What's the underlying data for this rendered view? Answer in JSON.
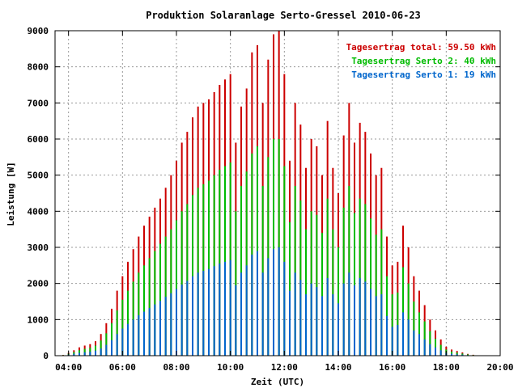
{
  "chart_data": {
    "type": "bar",
    "title": "Produktion Solaranlage Serto-Gressel 2010-06-23",
    "xlabel": "Zeit (UTC)",
    "ylabel": "Leistung [W]",
    "x_range_hours": [
      3.5,
      20
    ],
    "ylim": [
      0,
      9000
    ],
    "x_ticks": [
      {
        "hour": 4,
        "label": "04:00"
      },
      {
        "hour": 6,
        "label": "06:00"
      },
      {
        "hour": 8,
        "label": "08:00"
      },
      {
        "hour": 10,
        "label": "10:00"
      },
      {
        "hour": 12,
        "label": "12:00"
      },
      {
        "hour": 14,
        "label": "14:00"
      },
      {
        "hour": 16,
        "label": "16:00"
      },
      {
        "hour": 18,
        "label": "18:00"
      },
      {
        "hour": 20,
        "label": "20:00"
      }
    ],
    "y_ticks": [
      0,
      1000,
      2000,
      3000,
      4000,
      5000,
      6000,
      7000,
      8000,
      9000
    ],
    "grid": true,
    "legend_position": "top-right",
    "legend": [
      {
        "label": "Tagesertrag total: 59.50 kWh",
        "color": "#cc0000"
      },
      {
        "label": "Tagesertrag Serto 2: 40 kWh",
        "color": "#00bb00"
      },
      {
        "label": "Tagesertrag Serto 1: 19 kWh",
        "color": "#0066cc"
      }
    ],
    "series": [
      {
        "name": "total",
        "color": "#cc0000",
        "points": [
          [
            3.8,
            20
          ],
          [
            4.0,
            80
          ],
          [
            4.2,
            150
          ],
          [
            4.4,
            230
          ],
          [
            4.6,
            280
          ],
          [
            4.8,
            320
          ],
          [
            5.0,
            400
          ],
          [
            5.2,
            600
          ],
          [
            5.4,
            900
          ],
          [
            5.6,
            1300
          ],
          [
            5.8,
            1800
          ],
          [
            6.0,
            2200
          ],
          [
            6.2,
            2600
          ],
          [
            6.4,
            2950
          ],
          [
            6.6,
            3300
          ],
          [
            6.8,
            3600
          ],
          [
            7.0,
            3850
          ],
          [
            7.2,
            4100
          ],
          [
            7.4,
            4350
          ],
          [
            7.6,
            4650
          ],
          [
            7.8,
            5000
          ],
          [
            8.0,
            5400
          ],
          [
            8.2,
            5900
          ],
          [
            8.4,
            6200
          ],
          [
            8.6,
            6600
          ],
          [
            8.8,
            6900
          ],
          [
            9.0,
            7000
          ],
          [
            9.2,
            7100
          ],
          [
            9.4,
            7300
          ],
          [
            9.6,
            7500
          ],
          [
            9.8,
            7650
          ],
          [
            10.0,
            7800
          ],
          [
            10.2,
            5900
          ],
          [
            10.4,
            6900
          ],
          [
            10.6,
            7400
          ],
          [
            10.8,
            8400
          ],
          [
            11.0,
            8600
          ],
          [
            11.2,
            7000
          ],
          [
            11.4,
            8200
          ],
          [
            11.6,
            8900
          ],
          [
            11.8,
            9000
          ],
          [
            12.0,
            7800
          ],
          [
            12.2,
            5400
          ],
          [
            12.4,
            7000
          ],
          [
            12.6,
            6400
          ],
          [
            12.8,
            5200
          ],
          [
            13.0,
            6000
          ],
          [
            13.2,
            5800
          ],
          [
            13.4,
            5000
          ],
          [
            13.6,
            6500
          ],
          [
            13.8,
            5200
          ],
          [
            14.0,
            4500
          ],
          [
            14.2,
            6100
          ],
          [
            14.4,
            7000
          ],
          [
            14.6,
            5900
          ],
          [
            14.8,
            6450
          ],
          [
            15.0,
            6200
          ],
          [
            15.2,
            5600
          ],
          [
            15.4,
            5000
          ],
          [
            15.6,
            5200
          ],
          [
            15.8,
            3300
          ],
          [
            16.0,
            2500
          ],
          [
            16.2,
            2600
          ],
          [
            16.4,
            3600
          ],
          [
            16.6,
            3000
          ],
          [
            16.8,
            2200
          ],
          [
            17.0,
            1800
          ],
          [
            17.2,
            1400
          ],
          [
            17.4,
            1000
          ],
          [
            17.6,
            700
          ],
          [
            17.8,
            450
          ],
          [
            18.0,
            250
          ],
          [
            18.2,
            170
          ],
          [
            18.4,
            130
          ],
          [
            18.6,
            90
          ],
          [
            18.8,
            50
          ],
          [
            19.0,
            25
          ],
          [
            19.2,
            10
          ]
        ]
      },
      {
        "name": "Serto 2",
        "color": "#00bb00",
        "points": [
          [
            3.8,
            15
          ],
          [
            4.0,
            55
          ],
          [
            4.2,
            100
          ],
          [
            4.4,
            150
          ],
          [
            4.6,
            190
          ],
          [
            4.8,
            220
          ],
          [
            5.0,
            280
          ],
          [
            5.2,
            420
          ],
          [
            5.4,
            620
          ],
          [
            5.6,
            900
          ],
          [
            5.8,
            1250
          ],
          [
            6.0,
            1550
          ],
          [
            6.2,
            1800
          ],
          [
            6.4,
            2050
          ],
          [
            6.6,
            2300
          ],
          [
            6.8,
            2500
          ],
          [
            7.0,
            2700
          ],
          [
            7.2,
            2900
          ],
          [
            7.4,
            3100
          ],
          [
            7.6,
            3300
          ],
          [
            7.8,
            3500
          ],
          [
            8.0,
            3750
          ],
          [
            8.2,
            4000
          ],
          [
            8.4,
            4200
          ],
          [
            8.6,
            4450
          ],
          [
            8.8,
            4650
          ],
          [
            9.0,
            4750
          ],
          [
            9.2,
            4850
          ],
          [
            9.4,
            5000
          ],
          [
            9.6,
            5150
          ],
          [
            9.8,
            5250
          ],
          [
            10.0,
            5350
          ],
          [
            10.2,
            4000
          ],
          [
            10.4,
            4700
          ],
          [
            10.6,
            5100
          ],
          [
            10.8,
            5600
          ],
          [
            11.0,
            5800
          ],
          [
            11.2,
            4700
          ],
          [
            11.4,
            5500
          ],
          [
            11.6,
            6000
          ],
          [
            11.8,
            6000
          ],
          [
            12.0,
            5250
          ],
          [
            12.2,
            3700
          ],
          [
            12.4,
            4700
          ],
          [
            12.6,
            4300
          ],
          [
            12.8,
            3500
          ],
          [
            13.0,
            4000
          ],
          [
            13.2,
            3900
          ],
          [
            13.4,
            3400
          ],
          [
            13.6,
            4350
          ],
          [
            13.8,
            3500
          ],
          [
            14.0,
            3000
          ],
          [
            14.2,
            4100
          ],
          [
            14.4,
            4700
          ],
          [
            14.6,
            3950
          ],
          [
            14.8,
            4350
          ],
          [
            15.0,
            4200
          ],
          [
            15.2,
            3800
          ],
          [
            15.4,
            3350
          ],
          [
            15.6,
            3500
          ],
          [
            15.8,
            2200
          ],
          [
            16.0,
            1700
          ],
          [
            16.2,
            1750
          ],
          [
            16.4,
            2450
          ],
          [
            16.6,
            2000
          ],
          [
            16.8,
            1500
          ],
          [
            17.0,
            1200
          ],
          [
            17.2,
            950
          ],
          [
            17.4,
            680
          ],
          [
            17.6,
            470
          ],
          [
            17.8,
            300
          ],
          [
            18.0,
            170
          ],
          [
            18.2,
            115
          ],
          [
            18.4,
            85
          ],
          [
            18.6,
            60
          ],
          [
            18.8,
            35
          ],
          [
            19.0,
            17
          ],
          [
            19.2,
            7
          ]
        ]
      },
      {
        "name": "Serto 1",
        "color": "#0066cc",
        "points": [
          [
            3.8,
            8
          ],
          [
            4.0,
            30
          ],
          [
            4.2,
            55
          ],
          [
            4.4,
            80
          ],
          [
            4.6,
            95
          ],
          [
            4.8,
            110
          ],
          [
            5.0,
            140
          ],
          [
            5.2,
            200
          ],
          [
            5.4,
            300
          ],
          [
            5.6,
            430
          ],
          [
            5.8,
            600
          ],
          [
            6.0,
            750
          ],
          [
            6.2,
            880
          ],
          [
            6.4,
            1000
          ],
          [
            6.6,
            1120
          ],
          [
            6.8,
            1220
          ],
          [
            7.0,
            1320
          ],
          [
            7.2,
            1420
          ],
          [
            7.4,
            1520
          ],
          [
            7.6,
            1630
          ],
          [
            7.8,
            1730
          ],
          [
            8.0,
            1850
          ],
          [
            8.2,
            1970
          ],
          [
            8.4,
            2070
          ],
          [
            8.6,
            2200
          ],
          [
            8.8,
            2300
          ],
          [
            9.0,
            2350
          ],
          [
            9.2,
            2400
          ],
          [
            9.4,
            2480
          ],
          [
            9.6,
            2550
          ],
          [
            9.8,
            2600
          ],
          [
            10.0,
            2650
          ],
          [
            10.2,
            1950
          ],
          [
            10.4,
            2300
          ],
          [
            10.6,
            2500
          ],
          [
            10.8,
            2800
          ],
          [
            11.0,
            2900
          ],
          [
            11.2,
            2300
          ],
          [
            11.4,
            2700
          ],
          [
            11.6,
            2950
          ],
          [
            11.8,
            3000
          ],
          [
            12.0,
            2600
          ],
          [
            12.2,
            1800
          ],
          [
            12.4,
            2300
          ],
          [
            12.6,
            2100
          ],
          [
            12.8,
            1700
          ],
          [
            13.0,
            2000
          ],
          [
            13.2,
            1900
          ],
          [
            13.4,
            1650
          ],
          [
            13.6,
            2150
          ],
          [
            13.8,
            1700
          ],
          [
            14.0,
            1450
          ],
          [
            14.2,
            2000
          ],
          [
            14.4,
            2300
          ],
          [
            14.6,
            1950
          ],
          [
            14.8,
            2150
          ],
          [
            15.0,
            2050
          ],
          [
            15.2,
            1850
          ],
          [
            15.4,
            1650
          ],
          [
            15.6,
            1700
          ],
          [
            15.8,
            1100
          ],
          [
            16.0,
            800
          ],
          [
            16.2,
            850
          ],
          [
            16.4,
            1200
          ],
          [
            16.6,
            1000
          ],
          [
            16.8,
            700
          ],
          [
            17.0,
            600
          ],
          [
            17.2,
            450
          ],
          [
            17.4,
            320
          ],
          [
            17.6,
            230
          ],
          [
            17.8,
            150
          ],
          [
            18.0,
            80
          ],
          [
            18.2,
            55
          ],
          [
            18.4,
            40
          ],
          [
            18.6,
            30
          ],
          [
            18.8,
            15
          ],
          [
            19.0,
            8
          ],
          [
            19.2,
            3
          ]
        ]
      }
    ]
  }
}
